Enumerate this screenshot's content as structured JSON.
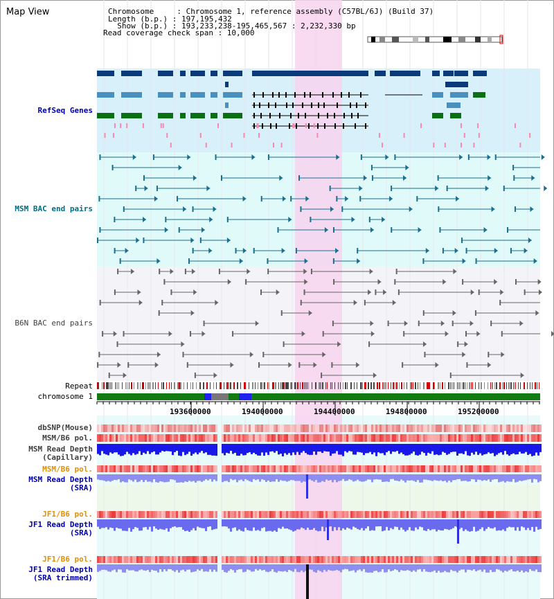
{
  "app": {
    "title": "Map View"
  },
  "info": {
    "chromosome_line": "Chromosome     : Chromosome 1, reference assembly (C57BL/6J) (Build 37)",
    "length_line": "Length (b.p.) : 197,195,432",
    "show_line": "  Show (b.p.) : 193,233,238-195,465,567 : 2,232,330 bp",
    "coverage_line": "Read coverage check span : 10,000"
  },
  "tracks": {
    "refseq": "RefSeq Genes",
    "msm_bac": "MSM BAC end pairs",
    "b6n_bac": "B6N BAC end pairs",
    "repeat": "Repeat",
    "chromosome": "chromosome 1",
    "dbsnp": "dbSNP(Mouse)",
    "msm_b6_pol_1": "MSM/B6 pol.",
    "msm_read_depth_cap": "MSM Read Depth\n(Capillary)",
    "msm_b6_pol_2": "MSM/B6 pol.",
    "msm_read_depth_sra": "MSM Read Depth\n(SRA)",
    "jf1_b6_pol_1": "JF1/B6 pol.",
    "jf1_read_depth_sra": "JF1 Read Depth\n(SRA)",
    "jf1_b6_pol_2": "JF1/B6 pol.",
    "jf1_read_depth_trim": "JF1 Read Depth\n(SRA trimmed)"
  },
  "axis": {
    "ticks": [
      "193600000",
      "194000000",
      "194400000",
      "194800000",
      "195200000"
    ]
  },
  "colors": {
    "refseq_bg": "#d8f0fa",
    "msm_bg": "#e0fafa",
    "b6n_bg": "#f4f4f8",
    "highlight": "#f7d4ef",
    "label_blue": "#0000aa",
    "label_teal": "#006d84",
    "label_orange": "#e39000",
    "label_dark": "#404040"
  }
}
